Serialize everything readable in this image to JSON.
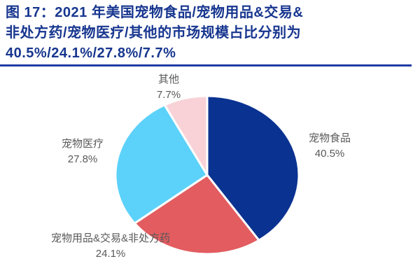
{
  "figure": {
    "title_lines": [
      "图 17：2021 年美国宠物食品/宠物用品&交易&",
      "非处方药/宠物医疗/其他的市场规模占比分别为",
      "40.5%/24.1%/27.8%/7.7%"
    ]
  },
  "colors": {
    "title": "#17368f",
    "rule": "#1e3ca3",
    "label_text": "#595959"
  },
  "chart_data": {
    "type": "pie",
    "title": "2021 年美国宠物食品/宠物用品&交易&非处方药/宠物医疗/其他的市场规模占比",
    "categories": [
      "宠物食品",
      "宠物用品&交易&非处方药",
      "宠物医疗",
      "其他"
    ],
    "values": [
      40.5,
      24.1,
      27.8,
      7.7
    ],
    "unit": "%",
    "colors": [
      "#0a3291",
      "#e25c60",
      "#5cd2fa",
      "#f8d2d7"
    ],
    "start_angle_deg": 0,
    "direction": "clockwise",
    "legend_position": "none",
    "grid": false,
    "labels": [
      {
        "text": "宠物食品",
        "pct": "40.5%"
      },
      {
        "text": "宠物用品&交易&非处方药",
        "pct": "24.1%"
      },
      {
        "text": "宠物医疗",
        "pct": "27.8%"
      },
      {
        "text": "其他",
        "pct": "7.7%"
      }
    ]
  }
}
